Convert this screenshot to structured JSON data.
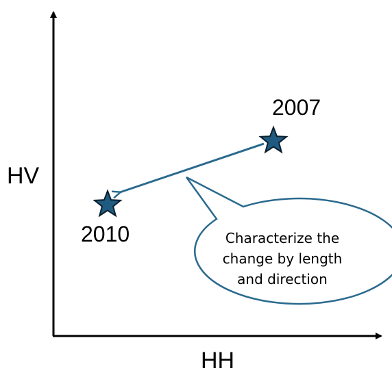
{
  "axes": {
    "x_label": "HH",
    "y_label": "HV"
  },
  "points": [
    {
      "label": "2007",
      "marker": "star-icon"
    },
    {
      "label": "2010",
      "marker": "star-icon"
    }
  ],
  "callout": {
    "lines": [
      "Characterize the",
      "change by length",
      "and direction"
    ]
  },
  "colors": {
    "star_fill": "#1f5b80",
    "star_stroke": "#0b1f2e",
    "arrow": "#2a6a8e",
    "callout_stroke": "#2a6a8e",
    "axis": "#000000"
  }
}
